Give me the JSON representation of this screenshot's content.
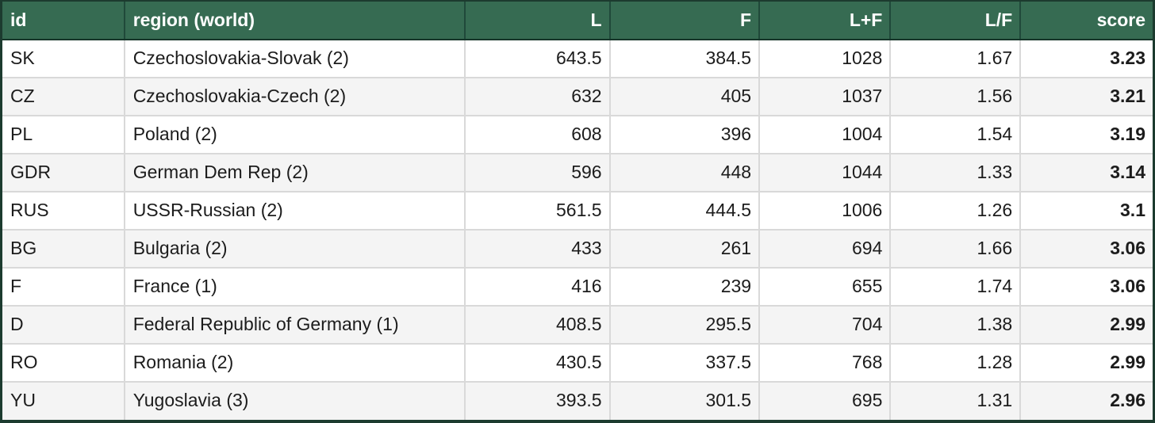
{
  "colors": {
    "header_bg": "#366b52",
    "header_text": "#ffffff",
    "outer_border": "#1c3b2f",
    "header_separator": "#20493a",
    "cell_border": "#d9d9d9",
    "alt_row_bg": "#f4f4f4",
    "body_text": "#1c1c1c"
  },
  "table": {
    "columns": [
      {
        "key": "id",
        "label": "id",
        "align": "left"
      },
      {
        "key": "region",
        "label": "region (world)",
        "align": "left"
      },
      {
        "key": "l",
        "label": "L",
        "align": "right"
      },
      {
        "key": "f",
        "label": "F",
        "align": "right"
      },
      {
        "key": "l_plus_f",
        "label": "L+F",
        "align": "right"
      },
      {
        "key": "l_over_f",
        "label": "L/F",
        "align": "right"
      },
      {
        "key": "score",
        "label": "score",
        "align": "right"
      }
    ],
    "rows": [
      [
        "SK",
        "Czechoslovakia-Slovak (2)",
        "643.5",
        "384.5",
        "1028",
        "1.67",
        "3.23"
      ],
      [
        "CZ",
        "Czechoslovakia-Czech (2)",
        "632",
        "405",
        "1037",
        "1.56",
        "3.21"
      ],
      [
        "PL",
        "Poland (2)",
        "608",
        "396",
        "1004",
        "1.54",
        "3.19"
      ],
      [
        "GDR",
        "German Dem Rep (2)",
        "596",
        "448",
        "1044",
        "1.33",
        "3.14"
      ],
      [
        "RUS",
        "USSR-Russian (2)",
        "561.5",
        "444.5",
        "1006",
        "1.26",
        "3.1"
      ],
      [
        "BG",
        "Bulgaria (2)",
        "433",
        "261",
        "694",
        "1.66",
        "3.06"
      ],
      [
        "F",
        "France (1)",
        "416",
        "239",
        "655",
        "1.74",
        "3.06"
      ],
      [
        "D",
        "Federal Republic of Germany (1)",
        "408.5",
        "295.5",
        "704",
        "1.38",
        "2.99"
      ],
      [
        "RO",
        "Romania (2)",
        "430.5",
        "337.5",
        "768",
        "1.28",
        "2.99"
      ],
      [
        "YU",
        "Yugoslavia (3)",
        "393.5",
        "301.5",
        "695",
        "1.31",
        "2.96"
      ]
    ]
  },
  "chart_data": {
    "type": "table",
    "title": "",
    "columns": [
      "id",
      "region (world)",
      "L",
      "F",
      "L+F",
      "L/F",
      "score"
    ],
    "rows": [
      [
        "SK",
        "Czechoslovakia-Slovak (2)",
        643.5,
        384.5,
        1028,
        1.67,
        3.23
      ],
      [
        "CZ",
        "Czechoslovakia-Czech (2)",
        632,
        405,
        1037,
        1.56,
        3.21
      ],
      [
        "PL",
        "Poland (2)",
        608,
        396,
        1004,
        1.54,
        3.19
      ],
      [
        "GDR",
        "German Dem Rep (2)",
        596,
        448,
        1044,
        1.33,
        3.14
      ],
      [
        "RUS",
        "USSR-Russian (2)",
        561.5,
        444.5,
        1006,
        1.26,
        3.1
      ],
      [
        "BG",
        "Bulgaria (2)",
        433,
        261,
        694,
        1.66,
        3.06
      ],
      [
        "F",
        "France (1)",
        416,
        239,
        655,
        1.74,
        3.06
      ],
      [
        "D",
        "Federal Republic of Germany (1)",
        408.5,
        295.5,
        704,
        1.38,
        2.99
      ],
      [
        "RO",
        "Romania (2)",
        430.5,
        337.5,
        768,
        1.28,
        2.99
      ],
      [
        "YU",
        "Yugoslavia (3)",
        393.5,
        301.5,
        695,
        1.31,
        2.96
      ]
    ],
    "layout_hints": {
      "striped_rows": true,
      "bold_columns": [
        "score"
      ],
      "right_aligned_columns": [
        "L",
        "F",
        "L+F",
        "L/F",
        "score"
      ]
    }
  }
}
